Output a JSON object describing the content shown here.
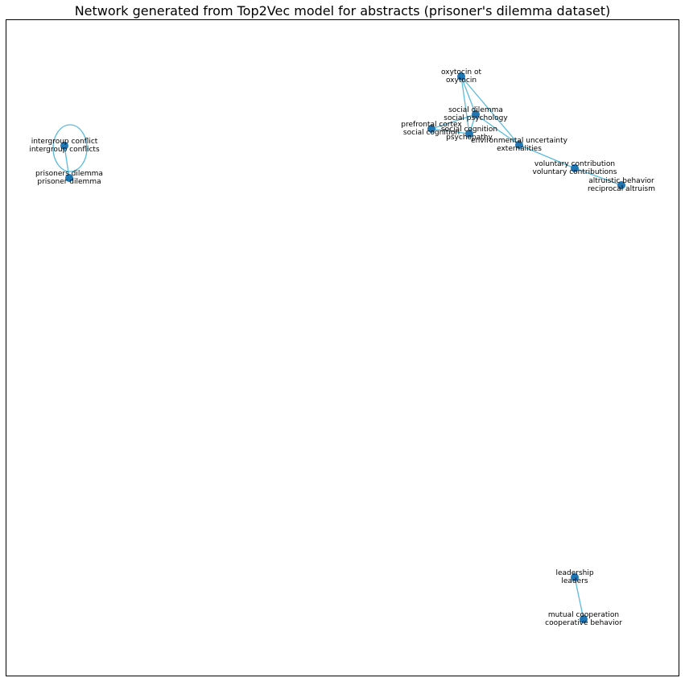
{
  "title": "Network generated from Top2Vec model for abstracts (prisoner's dilemma dataset)",
  "colors": {
    "edge": "#5bbcdd",
    "node": "#1f77b4",
    "frame": "#000000"
  },
  "nodes": [
    {
      "id": "oxytocin",
      "lines": [
        "oxytocin ot",
        "oxytocin"
      ]
    },
    {
      "id": "social_dilemma",
      "lines": [
        "social dilemma",
        "social psychology"
      ]
    },
    {
      "id": "prefrontal",
      "lines": [
        "prefrontal cortex",
        "social cognition"
      ]
    },
    {
      "id": "social_cognition",
      "lines": [
        "social cognition",
        "psychopathy"
      ]
    },
    {
      "id": "environmental",
      "lines": [
        "environmental uncertainty",
        "externalities"
      ]
    },
    {
      "id": "voluntary",
      "lines": [
        "voluntary contribution",
        "voluntary contributions"
      ]
    },
    {
      "id": "altruistic",
      "lines": [
        "altruistic behavior",
        "reciprocal altruism"
      ]
    },
    {
      "id": "intergroup",
      "lines": [
        "intergroup conflict",
        "intergroup conflicts"
      ]
    },
    {
      "id": "prisoners",
      "lines": [
        "prisoners dilemma",
        "prisoner dilemma"
      ]
    },
    {
      "id": "leadership",
      "lines": [
        "leadership",
        "leaders"
      ]
    },
    {
      "id": "mutual",
      "lines": [
        "mutual cooperation",
        "cooperative behavior"
      ]
    }
  ],
  "edges": [
    [
      "oxytocin",
      "social_dilemma"
    ],
    [
      "oxytocin",
      "social_cognition"
    ],
    [
      "oxytocin",
      "environmental"
    ],
    [
      "social_dilemma",
      "prefrontal"
    ],
    [
      "social_dilemma",
      "social_cognition"
    ],
    [
      "social_dilemma",
      "environmental"
    ],
    [
      "prefrontal",
      "social_cognition"
    ],
    [
      "environmental",
      "voluntary"
    ],
    [
      "voluntary",
      "altruistic"
    ],
    [
      "intergroup",
      "prisoners"
    ],
    [
      "leadership",
      "mutual"
    ]
  ],
  "self_loops": [
    "intergroup"
  ]
}
